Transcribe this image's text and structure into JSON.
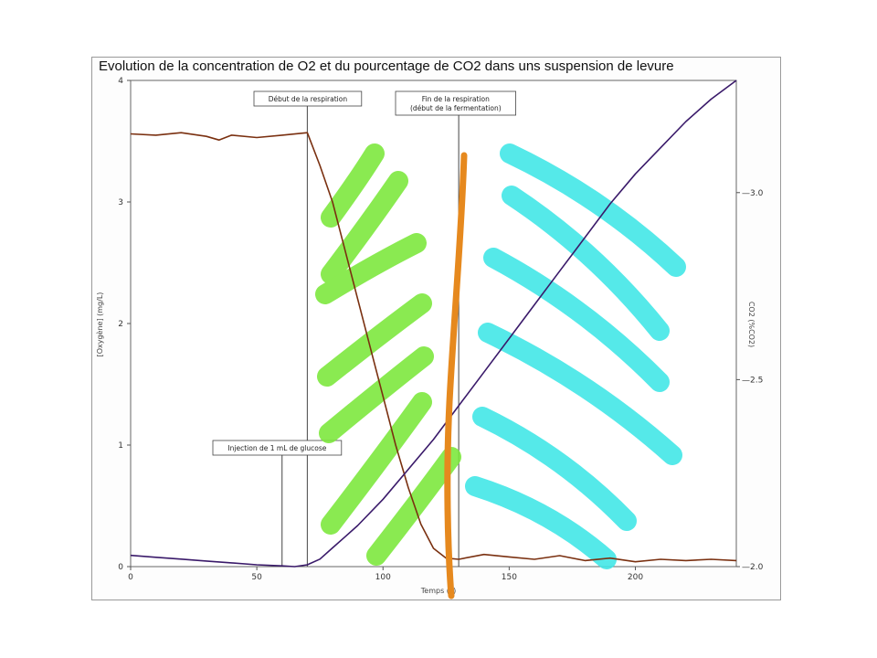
{
  "chart_data": {
    "type": "line",
    "title": "Evolution de la concentration de O2 et du pourcentage de CO2 dans uns suspension de levure",
    "xlabel": "Temps (s)",
    "ylabel_left": "[Oxygène] (mg/L)",
    "ylabel_right": "CO2 (%CO2)",
    "xlim": [
      0,
      240
    ],
    "ylim_left": [
      0,
      4
    ],
    "ylim_right": [
      2.0,
      3.3
    ],
    "x_ticks": [
      "0",
      "50",
      "100",
      "150",
      "200"
    ],
    "y_left_ticks": [
      "0",
      "1",
      "2",
      "3",
      "4"
    ],
    "y_right_ticks": [
      "2.0",
      "2.5",
      "3.0"
    ],
    "series": [
      {
        "name": "O2",
        "axis": "left",
        "color": "#7a3010",
        "x": [
          0,
          10,
          20,
          30,
          35,
          40,
          50,
          60,
          70,
          75,
          80,
          85,
          90,
          95,
          100,
          105,
          110,
          115,
          120,
          125,
          130,
          140,
          150,
          160,
          170,
          180,
          190,
          200,
          210,
          220,
          230,
          240
        ],
        "y": [
          3.56,
          3.55,
          3.57,
          3.54,
          3.51,
          3.55,
          3.53,
          3.55,
          3.57,
          3.3,
          3.0,
          2.6,
          2.2,
          1.8,
          1.4,
          1.0,
          0.65,
          0.35,
          0.15,
          0.07,
          0.06,
          0.1,
          0.08,
          0.06,
          0.09,
          0.05,
          0.07,
          0.04,
          0.06,
          0.05,
          0.06,
          0.05
        ]
      },
      {
        "name": "CO2",
        "axis": "right",
        "color": "#3a1a6a",
        "x": [
          0,
          10,
          20,
          30,
          40,
          50,
          60,
          65,
          70,
          75,
          80,
          85,
          90,
          100,
          110,
          120,
          130,
          140,
          150,
          160,
          170,
          180,
          190,
          200,
          210,
          220,
          230,
          240
        ],
        "y": [
          2.03,
          2.025,
          2.02,
          2.015,
          2.01,
          2.005,
          2.002,
          2.0,
          2.005,
          2.02,
          2.05,
          2.08,
          2.11,
          2.18,
          2.26,
          2.34,
          2.43,
          2.52,
          2.61,
          2.7,
          2.79,
          2.88,
          2.97,
          3.05,
          3.12,
          3.19,
          3.25,
          3.3
        ]
      }
    ],
    "annotations": [
      {
        "text": [
          "Début de la respiration"
        ],
        "x": 70
      },
      {
        "text": [
          "Fin de la respiration",
          "(début de la fermentation)"
        ],
        "x": 130
      },
      {
        "text": [
          "Injection de 1 mL de glucose"
        ],
        "x": 60
      }
    ],
    "grid": false,
    "legend": "none",
    "highlight_colors": {
      "respiration": "#7be83a",
      "fermentation": "#3ee6e6",
      "boundary": "#e6891e"
    }
  }
}
